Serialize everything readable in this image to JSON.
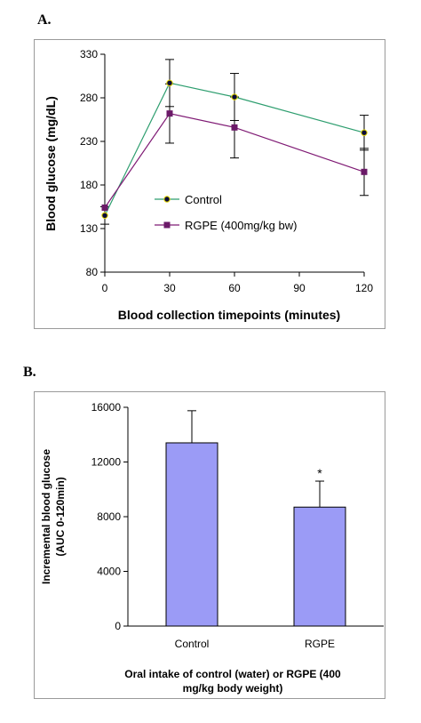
{
  "panels": {
    "a_label": "A.",
    "b_label": "B."
  },
  "chart_data": [
    {
      "type": "line",
      "x": [
        0,
        30,
        60,
        120
      ],
      "xticks": [
        "0",
        "30",
        "60",
        "90",
        "120"
      ],
      "xtick_values": [
        0,
        30,
        60,
        90,
        120
      ],
      "yticks": [
        "80",
        "130",
        "180",
        "230",
        "280",
        "330"
      ],
      "ytick_values": [
        80,
        130,
        180,
        230,
        280,
        330
      ],
      "xlim": [
        0,
        120
      ],
      "ylim": [
        80,
        330
      ],
      "xlabel": "Blood collection timepoints (minutes)",
      "ylabel": "Blood glucose (mg/dL)",
      "legend_position": "middle-left",
      "grid": false,
      "series": [
        {
          "name": "Control",
          "values": [
            145,
            297,
            281,
            240
          ],
          "errors": [
            10,
            27,
            27,
            20
          ],
          "color": "#2e9e6f",
          "marker": "circle",
          "marker_color": "#0b0b3a",
          "marker_ring": "#e6d800"
        },
        {
          "name": "RGPE (400mg/kg bw)",
          "values": [
            154,
            262,
            246,
            195
          ],
          "errors": [
            0,
            34,
            35,
            27
          ],
          "color": "#7f1a74",
          "marker": "square",
          "marker_color": "#6b1a68"
        }
      ]
    },
    {
      "type": "bar",
      "categories": [
        "Control",
        "RGPE"
      ],
      "values": [
        13400,
        8700
      ],
      "errors": [
        2350,
        1900
      ],
      "annotations": [
        "",
        "*"
      ],
      "yticks": [
        "0",
        "4000",
        "8000",
        "12000",
        "16000"
      ],
      "ytick_values": [
        0,
        4000,
        8000,
        12000,
        16000
      ],
      "ylim": [
        0,
        16000
      ],
      "ylabel_lines": [
        "Incremental blood glucose",
        "(AUC 0-120min)"
      ],
      "xlabel_lines": [
        "Oral intake of control (water) or RGPE (400",
        "mg/kg body weight)"
      ],
      "bar_color": "#9b9bf6",
      "grid": false
    }
  ]
}
